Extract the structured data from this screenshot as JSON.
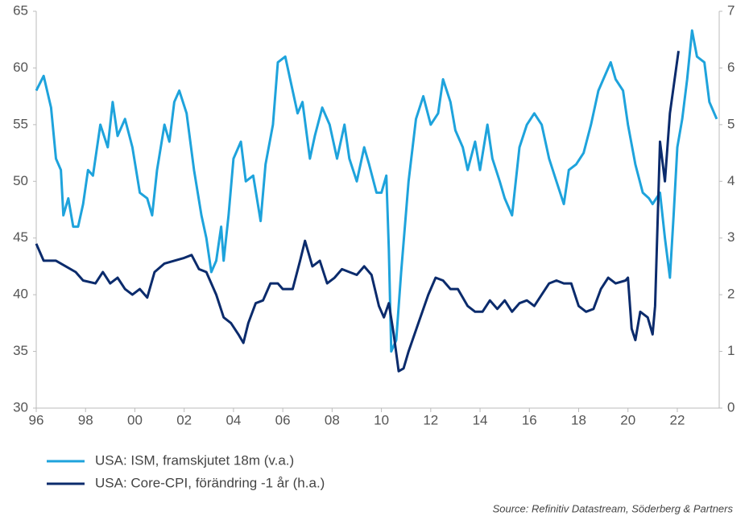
{
  "chart_data": {
    "type": "line",
    "source": "Source: Refinitiv Datastream, Söderberg & Partners",
    "xlim": [
      1996,
      2023.7
    ],
    "xticks": [
      {
        "value": 1996,
        "label": "96"
      },
      {
        "value": 1998,
        "label": "98"
      },
      {
        "value": 2000,
        "label": "00"
      },
      {
        "value": 2002,
        "label": "02"
      },
      {
        "value": 2004,
        "label": "04"
      },
      {
        "value": 2006,
        "label": "06"
      },
      {
        "value": 2008,
        "label": "08"
      },
      {
        "value": 2010,
        "label": "10"
      },
      {
        "value": 2012,
        "label": "12"
      },
      {
        "value": 2014,
        "label": "14"
      },
      {
        "value": 2016,
        "label": "16"
      },
      {
        "value": 2018,
        "label": "18"
      },
      {
        "value": 2020,
        "label": "20"
      },
      {
        "value": 2022,
        "label": "22"
      }
    ],
    "ylim": [
      30,
      65
    ],
    "yticks": [
      30,
      35,
      40,
      45,
      50,
      55,
      60,
      65
    ],
    "y2lim": [
      0,
      7
    ],
    "y2ticks": [
      0,
      1,
      2,
      3,
      4,
      5,
      6,
      7
    ],
    "series": [
      {
        "name": "USA: ISM, framskjutet 18m (v.a.)",
        "color": "#1ea3dc",
        "axis": "y",
        "x": [
          1996.0,
          1996.3,
          1996.6,
          1996.8,
          1997.0,
          1997.1,
          1997.3,
          1997.5,
          1997.7,
          1997.9,
          1998.1,
          1998.3,
          1998.6,
          1998.9,
          1999.1,
          1999.3,
          1999.6,
          1999.9,
          2000.2,
          2000.5,
          2000.7,
          2000.9,
          2001.2,
          2001.4,
          2001.6,
          2001.8,
          2002.1,
          2002.4,
          2002.7,
          2002.9,
          2003.1,
          2003.3,
          2003.5,
          2003.6,
          2003.8,
          2004.0,
          2004.3,
          2004.5,
          2004.8,
          2005.1,
          2005.3,
          2005.6,
          2005.8,
          2006.1,
          2006.3,
          2006.6,
          2006.8,
          2007.1,
          2007.3,
          2007.6,
          2007.9,
          2008.2,
          2008.5,
          2008.7,
          2009.0,
          2009.3,
          2009.5,
          2009.8,
          2010.0,
          2010.2,
          2010.3,
          2010.4,
          2010.6,
          2010.8,
          2011.1,
          2011.4,
          2011.7,
          2012.0,
          2012.3,
          2012.5,
          2012.8,
          2013.0,
          2013.3,
          2013.5,
          2013.8,
          2014.0,
          2014.3,
          2014.5,
          2014.8,
          2015.0,
          2015.3,
          2015.6,
          2015.9,
          2016.2,
          2016.5,
          2016.8,
          2017.1,
          2017.4,
          2017.6,
          2017.9,
          2018.2,
          2018.5,
          2018.8,
          2019.0,
          2019.3,
          2019.5,
          2019.8,
          2020.0,
          2020.3,
          2020.6,
          2020.85,
          2021.0,
          2021.3,
          2021.5,
          2021.7,
          2021.85,
          2022.0,
          2022.2,
          2022.4,
          2022.6,
          2022.8,
          2023.1,
          2023.3,
          2023.6
        ],
        "values": [
          58,
          59.3,
          56.5,
          52,
          51,
          47,
          48.5,
          46,
          46,
          48,
          51,
          50.5,
          55,
          53,
          57,
          54,
          55.5,
          53,
          49,
          48.5,
          47,
          51,
          55,
          53.5,
          57,
          58,
          56,
          51,
          47,
          45,
          42,
          43,
          46,
          43,
          47,
          52,
          53.5,
          50,
          50.5,
          46.5,
          51.5,
          55,
          60.5,
          61,
          59,
          56,
          57,
          52,
          54,
          56.5,
          55,
          52,
          55,
          52,
          50,
          53,
          51.5,
          49,
          49,
          50.5,
          44,
          35,
          36,
          42,
          50,
          55.5,
          57.5,
          55,
          56,
          59,
          57,
          54.5,
          53,
          51,
          53.5,
          51,
          55,
          52,
          50,
          48.5,
          47,
          53,
          55,
          56,
          55,
          52,
          50,
          48,
          51,
          51.5,
          52.5,
          55,
          58,
          59,
          60.5,
          59,
          58,
          55,
          51.5,
          49,
          48.5,
          48,
          49,
          45,
          41.5,
          47,
          53,
          55.5,
          59,
          63.3,
          61,
          60.5,
          57,
          55.5
        ]
      },
      {
        "name": "USA: Core-CPI, förändring -1 år (h.a.)",
        "color": "#0b2b6c",
        "axis": "y2",
        "x": [
          1996.0,
          1996.3,
          1996.8,
          1997.2,
          1997.6,
          1997.9,
          1998.4,
          1998.7,
          1999.0,
          1999.3,
          1999.6,
          1999.9,
          2000.2,
          2000.5,
          2000.8,
          2001.2,
          2001.6,
          2002.0,
          2002.3,
          2002.6,
          2002.9,
          2003.3,
          2003.6,
          2003.9,
          2004.2,
          2004.4,
          2004.6,
          2004.9,
          2005.2,
          2005.5,
          2005.8,
          2006.0,
          2006.4,
          2006.7,
          2006.9,
          2007.2,
          2007.5,
          2007.8,
          2008.1,
          2008.4,
          2008.7,
          2009.0,
          2009.3,
          2009.6,
          2009.9,
          2010.1,
          2010.3,
          2010.5,
          2010.7,
          2010.9,
          2011.1,
          2011.5,
          2011.9,
          2012.2,
          2012.5,
          2012.8,
          2013.1,
          2013.5,
          2013.8,
          2014.1,
          2014.4,
          2014.7,
          2015.0,
          2015.3,
          2015.6,
          2015.9,
          2016.2,
          2016.5,
          2016.8,
          2017.1,
          2017.4,
          2017.7,
          2018.0,
          2018.3,
          2018.6,
          2018.9,
          2019.2,
          2019.5,
          2019.9,
          2020.0,
          2020.15,
          2020.3,
          2020.5,
          2020.8,
          2021.0,
          2021.1,
          2021.3,
          2021.5,
          2021.7,
          2022.05
        ],
        "values": [
          2.9,
          2.6,
          2.6,
          2.5,
          2.4,
          2.25,
          2.2,
          2.4,
          2.2,
          2.3,
          2.1,
          2.0,
          2.1,
          1.95,
          2.4,
          2.55,
          2.6,
          2.65,
          2.7,
          2.45,
          2.4,
          2.0,
          1.6,
          1.5,
          1.3,
          1.15,
          1.5,
          1.85,
          1.9,
          2.2,
          2.2,
          2.1,
          2.1,
          2.6,
          2.95,
          2.5,
          2.6,
          2.2,
          2.3,
          2.45,
          2.4,
          2.35,
          2.5,
          2.35,
          1.8,
          1.6,
          1.85,
          1.3,
          0.65,
          0.7,
          1.0,
          1.5,
          2.0,
          2.3,
          2.25,
          2.1,
          2.1,
          1.8,
          1.7,
          1.7,
          1.9,
          1.75,
          1.9,
          1.7,
          1.85,
          1.9,
          1.8,
          2.0,
          2.2,
          2.25,
          2.2,
          2.2,
          1.8,
          1.7,
          1.75,
          2.1,
          2.3,
          2.2,
          2.25,
          2.3,
          1.4,
          1.2,
          1.7,
          1.6,
          1.3,
          1.8,
          4.7,
          4.0,
          5.2,
          6.3
        ]
      }
    ]
  }
}
